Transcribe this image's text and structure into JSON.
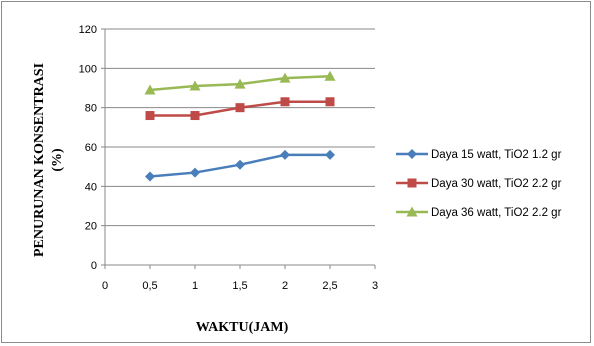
{
  "chart_data": {
    "type": "line",
    "xlabel": "WAKTU(JAM)",
    "ylabel": "PENURUNAN KONSENTRASI",
    "ylabel_unit": "(%)",
    "xlim": [
      0,
      3
    ],
    "ylim": [
      0,
      120
    ],
    "x_ticks": [
      "0",
      "0,5",
      "1",
      "1,5",
      "2",
      "2,5",
      "3"
    ],
    "y_ticks": [
      "0",
      "20",
      "40",
      "60",
      "80",
      "100",
      "120"
    ],
    "grid": "horizontal",
    "legend_position": "right",
    "x": [
      0.5,
      1,
      1.5,
      2,
      2.5
    ],
    "series": [
      {
        "name": "Daya 15 watt, TiO2 1.2 gr",
        "color": "#4a7ebb",
        "marker": "diamond",
        "values": [
          45,
          47,
          51,
          56,
          56
        ]
      },
      {
        "name": "Daya 30 watt, TiO2 2.2 gr",
        "color": "#be4b48",
        "marker": "square",
        "values": [
          76,
          76,
          80,
          83,
          83
        ]
      },
      {
        "name": "Daya 36 watt, TiO2 2.2 gr",
        "color": "#98b954",
        "marker": "triangle",
        "values": [
          89,
          91,
          92,
          95,
          96
        ]
      }
    ]
  }
}
